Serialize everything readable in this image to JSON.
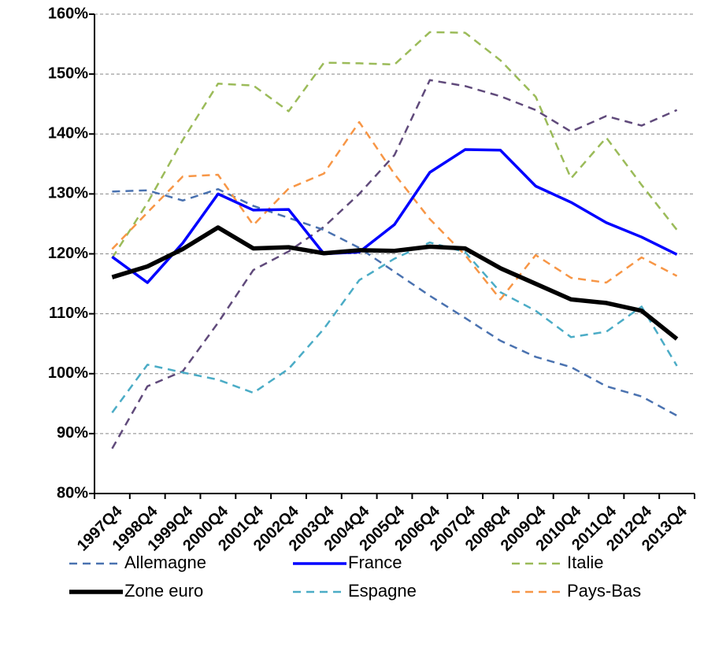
{
  "chart_data": {
    "type": "line",
    "categories": [
      "1997Q4",
      "1998Q4",
      "1999Q4",
      "2000Q4",
      "2001Q4",
      "2002Q4",
      "2003Q4",
      "2004Q4",
      "2005Q4",
      "2006Q4",
      "2007Q4",
      "2008Q4",
      "2009Q4",
      "2010Q4",
      "2011Q4",
      "2012Q4",
      "2013Q4"
    ],
    "ylim": [
      80,
      160
    ],
    "yticks": [
      {
        "value": 80,
        "label": "80%"
      },
      {
        "value": 90,
        "label": "90%"
      },
      {
        "value": 100,
        "label": "100%"
      },
      {
        "value": 110,
        "label": "110%"
      },
      {
        "value": 120,
        "label": "120%"
      },
      {
        "value": 130,
        "label": "130%"
      },
      {
        "value": 140,
        "label": "140%"
      },
      {
        "value": 150,
        "label": "150%"
      },
      {
        "value": 160,
        "label": "160%"
      }
    ],
    "grid": true,
    "series": [
      {
        "name": "Allemagne",
        "color": "#4a72b0",
        "dashed": true,
        "line_width": 2.5,
        "values": [
          130.4,
          130.6,
          128.9,
          130.8,
          128,
          126,
          124,
          121,
          117,
          113,
          109.3,
          105.5,
          102.8,
          101.1,
          97.9,
          96.2,
          93
        ]
      },
      {
        "name": "France",
        "color": "#0000ff",
        "dashed": false,
        "line_width": 3.5,
        "values": [
          119.5,
          115.2,
          121.8,
          130,
          127.3,
          127.4,
          120,
          120.3,
          124.9,
          133.6,
          137.4,
          137.3,
          131.3,
          128.6,
          125.2,
          122.8,
          119.9
        ]
      },
      {
        "name": "Italie",
        "color": "#9bbb59",
        "dashed": true,
        "line_width": 2.5,
        "values": [
          119.3,
          128.5,
          139,
          148.4,
          148.1,
          143.8,
          151.9,
          151.8,
          151.6,
          157,
          156.9,
          152.3,
          146.2,
          132.6,
          139.4,
          131.5,
          124
        ]
      },
      {
        "name": "Zone euro",
        "color": "#000000",
        "dashed": false,
        "line_width": 5.5,
        "values": [
          116.1,
          117.9,
          120.8,
          124.4,
          120.9,
          121.1,
          120.1,
          120.6,
          120.5,
          121.2,
          120.9,
          117.6,
          115,
          112.4,
          111.8,
          110.5,
          105.8
        ]
      },
      {
        "name": "Espagne",
        "color": "#4bacc6",
        "dashed": true,
        "line_width": 2.5,
        "values": [
          93.5,
          101.5,
          100.2,
          99,
          96.8,
          100.8,
          107.5,
          115.6,
          119.2,
          121.9,
          120.3,
          113.6,
          110.5,
          106.1,
          107,
          111.2,
          101.3
        ]
      },
      {
        "name": "Pays-Bas",
        "color": "#f79646",
        "dashed": true,
        "line_width": 2.5,
        "values": [
          120.8,
          126.9,
          132.9,
          133.2,
          124.8,
          130.9,
          133.4,
          142,
          133.3,
          125.8,
          119.8,
          112.4,
          119.8,
          116,
          115.2,
          119.4,
          116.3
        ]
      },
      {
        "color": "#604a7b",
        "dashed": true,
        "line_width": 2.5,
        "values": [
          87.5,
          97.9,
          100.4,
          108.5,
          117.3,
          120.4,
          124.5,
          130,
          136.5,
          149,
          148,
          146.3,
          144,
          140.4,
          143,
          141.4,
          144
        ]
      }
    ]
  }
}
